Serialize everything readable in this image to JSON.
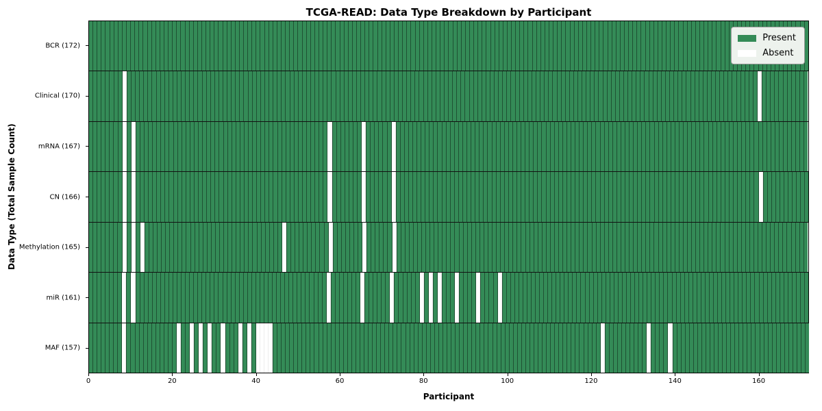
{
  "chart_data": {
    "type": "heatmap",
    "title": "TCGA-READ: Data Type Breakdown by Participant",
    "xlabel": "Participant",
    "ylabel": "Data Type (Total Sample Count)",
    "n_participants": 172,
    "x_ticks": [
      0,
      20,
      40,
      60,
      80,
      100,
      120,
      140,
      160
    ],
    "grid": "cell-borders",
    "legend_position": "upper right",
    "colors": {
      "present": "#348b57",
      "absent": "#ffffff"
    },
    "legend": [
      {
        "label": "Present",
        "color": "#348b57"
      },
      {
        "label": "Absent",
        "color": "#ffffff"
      }
    ],
    "rows": [
      {
        "label": "BCR (172)",
        "total": 172,
        "absent_participants": []
      },
      {
        "label": "Clinical (170)",
        "total": 170,
        "absent_participants": [
          8,
          160
        ]
      },
      {
        "label": "mRNA (167)",
        "total": 167,
        "absent_participants": [
          8,
          10,
          57,
          65,
          72
        ]
      },
      {
        "label": "CN (166)",
        "total": 166,
        "absent_participants": [
          8,
          10,
          57,
          65,
          72,
          160
        ]
      },
      {
        "label": "Methylation (165)",
        "total": 165,
        "absent_participants": [
          8,
          10,
          12,
          46,
          57,
          65,
          72
        ]
      },
      {
        "label": "miR (161)",
        "total": 161,
        "absent_participants": [
          8,
          10,
          57,
          65,
          72,
          79,
          81,
          83,
          87,
          92,
          97
        ]
      },
      {
        "label": "MAF (157)",
        "total": 157,
        "absent_participants": [
          8,
          21,
          24,
          26,
          28,
          31,
          35,
          37,
          39,
          40,
          41,
          42,
          122,
          133,
          138
        ]
      }
    ]
  }
}
